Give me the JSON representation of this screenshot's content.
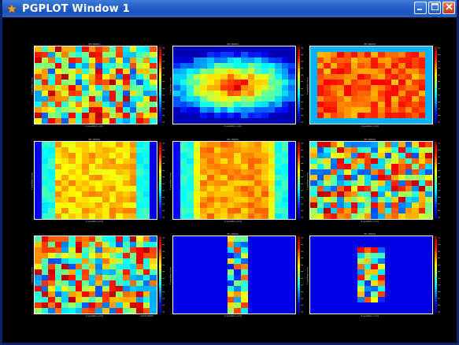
{
  "window": {
    "title": "PGPLOT Window  1",
    "app_icon": "star-icon",
    "buttons": {
      "minimize_icon": "minimize-icon",
      "maximize_icon": "maximize-icon",
      "close_icon": "close-icon"
    }
  },
  "panels": [
    {
      "name": "panel-1",
      "pattern": "noise",
      "title": "PD 00000",
      "xlabel": "X position (cm)",
      "ylabel": "Y position (cm)",
      "footer": ""
    },
    {
      "name": "panel-2",
      "pattern": "blob",
      "title": "PD 00000",
      "xlabel": "X position (cm)",
      "ylabel": "Y position (cm)",
      "footer": ""
    },
    {
      "name": "panel-3",
      "pattern": "flat",
      "title": "PD 00000",
      "xlabel": "X position (cm)",
      "ylabel": "Y position (cm)",
      "footer": ""
    },
    {
      "name": "panel-4",
      "pattern": "vband",
      "title": "PD 00000",
      "xlabel": "X position (cm)",
      "ylabel": "Y position (cm)",
      "footer": ""
    },
    {
      "name": "panel-5",
      "pattern": "vband2",
      "title": "PD 00000",
      "xlabel": "X position (cm)",
      "ylabel": "Y position (cm)",
      "footer": ""
    },
    {
      "name": "panel-6",
      "pattern": "noise2",
      "title": "PD 00000",
      "xlabel": "X position (cm)",
      "ylabel": "Y position (cm)",
      "footer": ""
    },
    {
      "name": "panel-7",
      "pattern": "noise3",
      "title": "",
      "xlabel": "X position (cm)",
      "ylabel": "Y position (cm)",
      "footer": "1/2/3 4/5/6"
    },
    {
      "name": "panel-8",
      "pattern": "sparse1",
      "title": "PD 00000",
      "xlabel": "X position (cm)",
      "ylabel": "Y position (cm)",
      "footer": ""
    },
    {
      "name": "panel-9",
      "pattern": "sparse2",
      "title": "PD 00000",
      "xlabel": "X position (cm)",
      "ylabel": "Y position (cm)",
      "footer": ""
    }
  ],
  "colors": {
    "titlebar": "#2662c9",
    "background": "#000000",
    "map_low": "#00008f",
    "map_high": "#800000"
  }
}
